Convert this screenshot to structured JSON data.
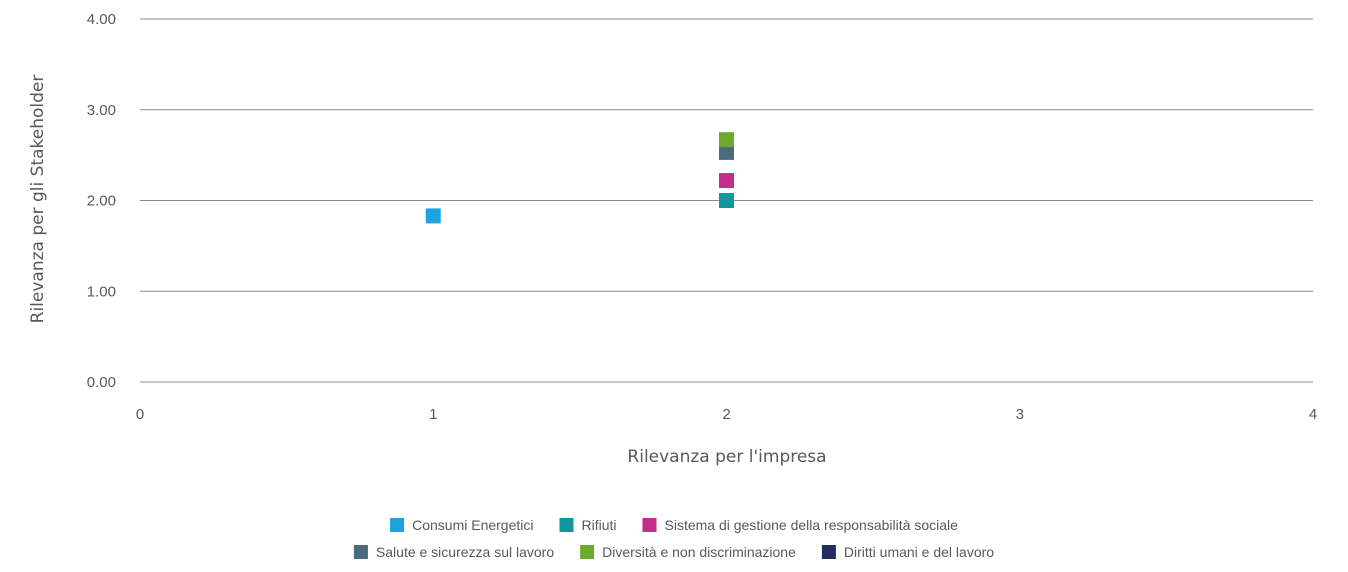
{
  "chart_data": {
    "type": "scatter",
    "title": "",
    "xlabel": "Rilevanza per l'impresa",
    "ylabel": "Rilevanza per gli Stakeholder",
    "xlim": [
      0,
      4
    ],
    "ylim": [
      0,
      4
    ],
    "x_ticks": [
      "0",
      "1",
      "2",
      "3",
      "4"
    ],
    "y_ticks": [
      "0.00",
      "1.00",
      "2.00",
      "3.00",
      "4.00"
    ],
    "grid": "horizontal",
    "legend_position": "bottom",
    "series": [
      {
        "name": "Consumi Energetici",
        "color": "#1ea1e0",
        "points": [
          [
            1,
            1.83
          ]
        ]
      },
      {
        "name": "Rifiuti",
        "color": "#10969c",
        "points": [
          [
            2,
            2.0
          ]
        ]
      },
      {
        "name": "Sistema di gestione della responsabilità sociale",
        "color": "#c42d8b",
        "points": [
          [
            2,
            2.22
          ]
        ]
      },
      {
        "name": "Salute e sicurezza sul lavoro",
        "color": "#4a6a7e",
        "points": [
          [
            2,
            2.53
          ]
        ]
      },
      {
        "name": "Diversità e non discriminazione",
        "color": "#6aaa2c",
        "points": [
          [
            2,
            2.67
          ]
        ]
      },
      {
        "name": "Diritti umani e del lavoro",
        "color": "#1e2c5e",
        "points": []
      }
    ]
  }
}
